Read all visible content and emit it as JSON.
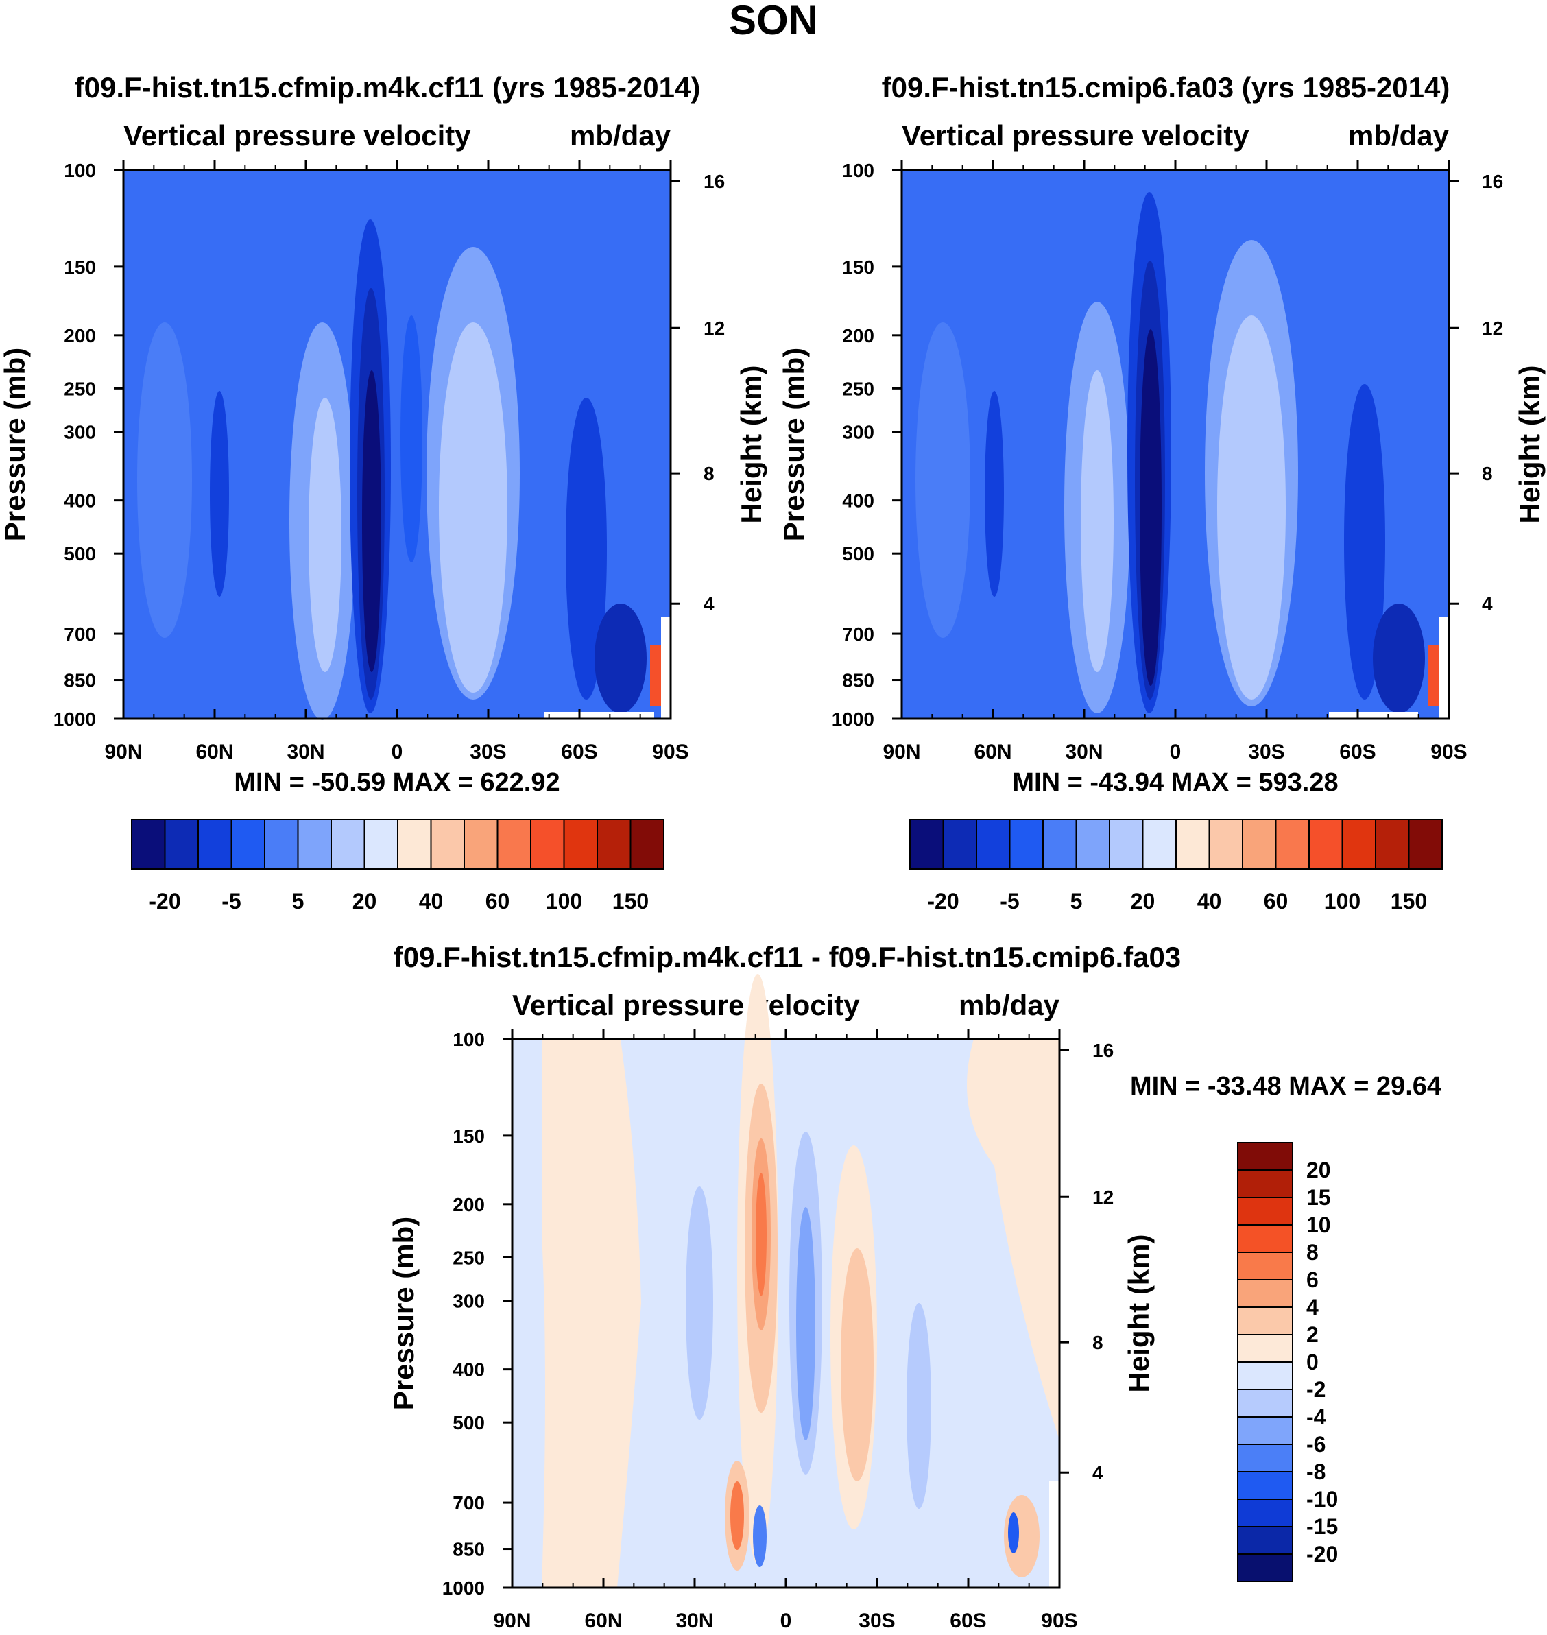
{
  "main_title": "SON",
  "colors": {
    "scale": [
      "#0a0e7a",
      "#0d2bb5",
      "#1240dc",
      "#1f5af2",
      "#4a7df7",
      "#7ea4fb",
      "#b3c9fd",
      "#dbe7fe",
      "#fde8d6",
      "#fbc8aa",
      "#f9a47a",
      "#f9784d",
      "#f5502a",
      "#e0350f",
      "#b52009",
      "#820c07"
    ],
    "diff_scale": [
      "#08106f",
      "#0b28a8",
      "#0f3bd6",
      "#1f5af2",
      "#4b7ff7",
      "#7fa5fb",
      "#b6cbfd",
      "#dbe7fe",
      "#fde9d8",
      "#fbc9aa",
      "#f9a47a",
      "#f97a4a",
      "#f45226",
      "#de3410",
      "#b11f08",
      "#800c07"
    ]
  },
  "chart_data": [
    {
      "type": "heatmap",
      "panel": "top-left",
      "title": "f09.F-hist.tn15.cfmip.m4k.cf11 (yrs 1985-2014)",
      "left_string": "Vertical pressure velocity",
      "right_string": "mb/day",
      "ylabel": "Pressure (mb)",
      "y2label": "Height (km)",
      "x_ticks": [
        "90N",
        "60N",
        "30N",
        "0",
        "30S",
        "60S",
        "90S"
      ],
      "y_ticks": [
        "100",
        "150",
        "200",
        "250",
        "300",
        "400",
        "500",
        "700",
        "850",
        "1000"
      ],
      "y2_ticks": [
        "16",
        "12",
        "8",
        "4"
      ],
      "min_max": "MIN = -50.59  MAX = 622.92",
      "colorbar_labels": [
        "-20",
        "-5",
        "5",
        "20",
        "40",
        "60",
        "100",
        "150"
      ]
    },
    {
      "type": "heatmap",
      "panel": "top-right",
      "title": "f09.F-hist.tn15.cmip6.fa03 (yrs 1985-2014)",
      "left_string": "Vertical pressure velocity",
      "right_string": "mb/day",
      "ylabel": "Pressure (mb)",
      "y2label": "Height (km)",
      "x_ticks": [
        "90N",
        "60N",
        "30N",
        "0",
        "30S",
        "60S",
        "90S"
      ],
      "y_ticks": [
        "100",
        "150",
        "200",
        "250",
        "300",
        "400",
        "500",
        "700",
        "850",
        "1000"
      ],
      "y2_ticks": [
        "16",
        "12",
        "8",
        "4"
      ],
      "min_max": "MIN = -43.94  MAX = 593.28",
      "colorbar_labels": [
        "-20",
        "-5",
        "5",
        "20",
        "40",
        "60",
        "100",
        "150"
      ]
    },
    {
      "type": "heatmap",
      "panel": "bottom",
      "title": "f09.F-hist.tn15.cfmip.m4k.cf11 - f09.F-hist.tn15.cmip6.fa03",
      "left_string": "Vertical pressure velocity",
      "right_string": "mb/day",
      "ylabel": "Pressure (mb)",
      "y2label": "Height (km)",
      "x_ticks": [
        "90N",
        "60N",
        "30N",
        "0",
        "30S",
        "60S",
        "90S"
      ],
      "y_ticks": [
        "100",
        "150",
        "200",
        "250",
        "300",
        "400",
        "500",
        "700",
        "850",
        "1000"
      ],
      "y2_ticks": [
        "16",
        "12",
        "8",
        "4"
      ],
      "min_max": "MIN = -33.48  MAX =  29.64",
      "colorbar_labels": [
        "20",
        "15",
        "10",
        "8",
        "6",
        "4",
        "2",
        "0",
        "-2",
        "-4",
        "-6",
        "-8",
        "-10",
        "-15",
        "-20"
      ]
    }
  ]
}
